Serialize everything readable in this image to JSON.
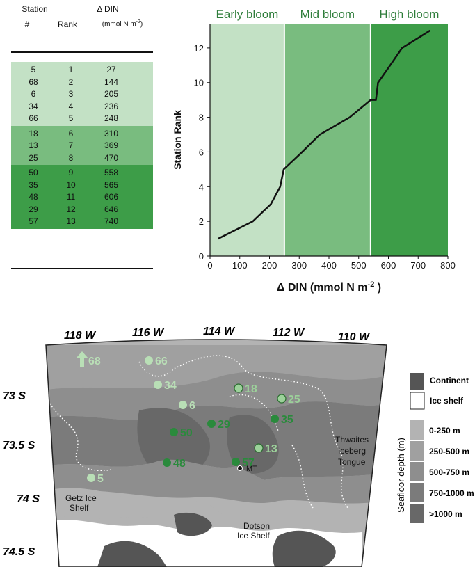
{
  "table": {
    "header_station": "Station",
    "header_num": "#",
    "header_rank": "Rank",
    "header_din": "Δ DIN",
    "header_unit": "(mmol N m",
    "header_unit_exp": "-2",
    "header_unit_close": ")",
    "colors": {
      "early": "#c3e1c5",
      "mid": "#79bc7f",
      "high": "#3d9d48"
    },
    "rows": [
      {
        "station": "5",
        "rank": "1",
        "din": "27",
        "phase": "early"
      },
      {
        "station": "68",
        "rank": "2",
        "din": "144",
        "phase": "early"
      },
      {
        "station": "6",
        "rank": "3",
        "din": "205",
        "phase": "early"
      },
      {
        "station": "34",
        "rank": "4",
        "din": "236",
        "phase": "early"
      },
      {
        "station": "66",
        "rank": "5",
        "din": "248",
        "phase": "early"
      },
      {
        "station": "18",
        "rank": "6",
        "din": "310",
        "phase": "mid"
      },
      {
        "station": "13",
        "rank": "7",
        "din": "369",
        "phase": "mid"
      },
      {
        "station": "25",
        "rank": "8",
        "din": "470",
        "phase": "mid"
      },
      {
        "station": "50",
        "rank": "9",
        "din": "558",
        "phase": "high"
      },
      {
        "station": "35",
        "rank": "10",
        "din": "565",
        "phase": "high"
      },
      {
        "station": "48",
        "rank": "11",
        "din": "606",
        "phase": "high"
      },
      {
        "station": "29",
        "rank": "12",
        "din": "646",
        "phase": "high"
      },
      {
        "station": "57",
        "rank": "13",
        "din": "740",
        "phase": "high"
      }
    ]
  },
  "chart_data": {
    "type": "line",
    "title": "",
    "xlabel": "Δ DIN (mmol N m",
    "xlabel_exp": "-2",
    "xlabel_close": " )",
    "ylabel": "Station Rank",
    "xlim": [
      0,
      800
    ],
    "ylim": [
      0,
      13.4
    ],
    "xticks": [
      "0",
      "100",
      "200",
      "300",
      "400",
      "500",
      "600",
      "700",
      "800"
    ],
    "yticks": [
      "0",
      "2",
      "4",
      "6",
      "8",
      "10",
      "12"
    ],
    "regions": [
      {
        "label": "Early bloom",
        "x0": 0,
        "x1": 250,
        "color": "#c3e1c5"
      },
      {
        "label": "Mid bloom",
        "x0": 250,
        "x1": 540,
        "color": "#79bc7f"
      },
      {
        "label": "High bloom",
        "x0": 540,
        "x1": 800,
        "color": "#3d9d48"
      }
    ],
    "region_label_color": "#2e7d3a",
    "line_color": "#111111",
    "x": [
      27,
      144,
      205,
      236,
      248,
      310,
      369,
      470,
      540,
      558,
      565,
      606,
      646,
      740
    ],
    "y": [
      1,
      2,
      3,
      4,
      5,
      6,
      7,
      8,
      9,
      9,
      10,
      11,
      12,
      13
    ]
  },
  "map": {
    "lon_labels": [
      "118 W",
      "116 W",
      "114 W",
      "112 W",
      "110 W"
    ],
    "lat_labels": [
      "73 S",
      "73.5 S",
      "74 S",
      "74.5 S"
    ],
    "features": {
      "getz": "Getz Ice",
      "getz2": "Shelf",
      "dotson": "Dotson",
      "dotson2": "Ice Shelf",
      "thwaites1": "Thwaites",
      "thwaites2": "Iceberg",
      "thwaites3": "Tongue",
      "mt": "MT"
    },
    "stations": [
      {
        "id": "68",
        "phase": "early",
        "arrow": true
      },
      {
        "id": "66",
        "phase": "early"
      },
      {
        "id": "34",
        "phase": "early"
      },
      {
        "id": "6",
        "phase": "early"
      },
      {
        "id": "18",
        "phase": "mid"
      },
      {
        "id": "25",
        "phase": "mid"
      },
      {
        "id": "13",
        "phase": "mid"
      },
      {
        "id": "29",
        "phase": "high"
      },
      {
        "id": "35",
        "phase": "high"
      },
      {
        "id": "50",
        "phase": "high"
      },
      {
        "id": "48",
        "phase": "high"
      },
      {
        "id": "57",
        "phase": "high"
      },
      {
        "id": "5",
        "phase": "early"
      }
    ],
    "station_colors": {
      "early": "#b9dfb6",
      "mid": "#9cd19a",
      "high": "#2a8a3c"
    },
    "legend": {
      "continent": "Continent",
      "ice_shelf": "Ice shelf",
      "depth_title": "Seafloor depth (m)",
      "depth_bins": [
        {
          "label": "0-250 m",
          "color": "#b3b3b3"
        },
        {
          "label": "250-500 m",
          "color": "#a0a0a0"
        },
        {
          "label": "500-750 m",
          "color": "#8e8e8e"
        },
        {
          "label": "750-1000 m",
          "color": "#7b7b7b"
        },
        {
          "label": ">1000 m",
          "color": "#686868"
        }
      ],
      "continent_color": "#555555"
    }
  }
}
